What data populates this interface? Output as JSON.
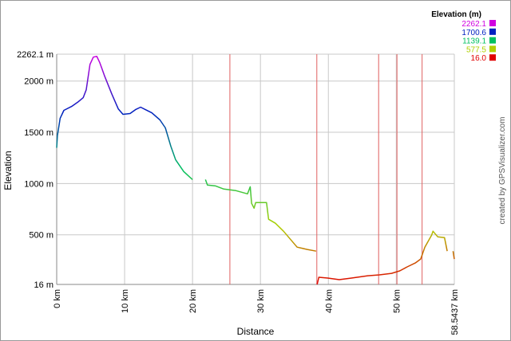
{
  "chart_data": {
    "type": "line",
    "ylabel": "Elevation",
    "xlabel": "Distance",
    "credit": "created by GPSVisualizer.com",
    "legend_title": "Elevation (m)",
    "color_scale": [
      {
        "value": 2262.1,
        "color": "#d000e0"
      },
      {
        "value": 1700.6,
        "color": "#0020c0"
      },
      {
        "value": 1139.1,
        "color": "#00c060"
      },
      {
        "value": 577.5,
        "color": "#b0d000"
      },
      {
        "value": 16,
        "label": "16.0",
        "color": "#e00000"
      }
    ],
    "ylim": [
      16,
      2262.1
    ],
    "yticks": [
      {
        "value": 16,
        "label": "16 m"
      },
      {
        "value": 500,
        "label": "500 m"
      },
      {
        "value": 1000,
        "label": "1000 m"
      },
      {
        "value": 1500,
        "label": "1500 m"
      },
      {
        "value": 2000,
        "label": "2000 m"
      },
      {
        "value": 2262.1,
        "label": "2262.1 m"
      }
    ],
    "xlim": [
      0,
      58.5437
    ],
    "xticks": [
      {
        "value": 0,
        "label": "0 km"
      },
      {
        "value": 10,
        "label": "10 km"
      },
      {
        "value": 20,
        "label": "20 km"
      },
      {
        "value": 30,
        "label": "30 km"
      },
      {
        "value": 40,
        "label": "40 km"
      },
      {
        "value": 50,
        "label": "50 km"
      },
      {
        "value": 58.5437,
        "label": "58.5437 km"
      }
    ],
    "grid": true,
    "vertical_lines": [
      25.5,
      38.3,
      47.4,
      50.1,
      53.8
    ],
    "vertical_line_color": "#e06060",
    "x": [
      0,
      0.1,
      0.5,
      1.06,
      2.2,
      3.2,
      3.9,
      4.35,
      4.9,
      5.4,
      5.9,
      6.35,
      7.06,
      8.1,
      9.06,
      9.76,
      10.8,
      11.6,
      12.35,
      13.06,
      14.0,
      15.2,
      16.0,
      16.8,
      17.5,
      18.7,
      20.0,
      null,
      21.9,
      22.2,
      23.4,
      24.6,
      26.4,
      28.1,
      28.5,
      28.7,
      29.06,
      29.3,
      30.9,
      31.2,
      32.2,
      33.4,
      34.6,
      35.4,
      36.9,
      38.2,
      null,
      38.35,
      38.6,
      39.9,
      41.6,
      43.4,
      45.8,
      47.5,
      49.3,
      50.5,
      51.6,
      52.8,
      53.6,
      54.2,
      55.2,
      55.4,
      56.1,
      57.1,
      57.5,
      null,
      58.35,
      58.54
    ],
    "values": [
      1349,
      1466,
      1636,
      1714,
      1752,
      1799,
      1838,
      1915,
      2163,
      2233,
      2241,
      2179,
      2047,
      1876,
      1729,
      1675,
      1683,
      1721,
      1745,
      1721,
      1690,
      1621,
      1543,
      1365,
      1233,
      1117,
      1039,
      null,
      1039,
      985,
      977,
      946,
      931,
      900,
      969,
      807,
      760,
      814,
      814,
      652,
      613,
      535,
      442,
      380,
      357,
      341,
      null,
      16,
      86,
      78,
      63,
      78,
      101,
      109,
      124,
      148,
      187,
      225,
      264,
      380,
      497,
      535,
      481,
      473,
      341,
      null,
      341,
      264
    ]
  }
}
